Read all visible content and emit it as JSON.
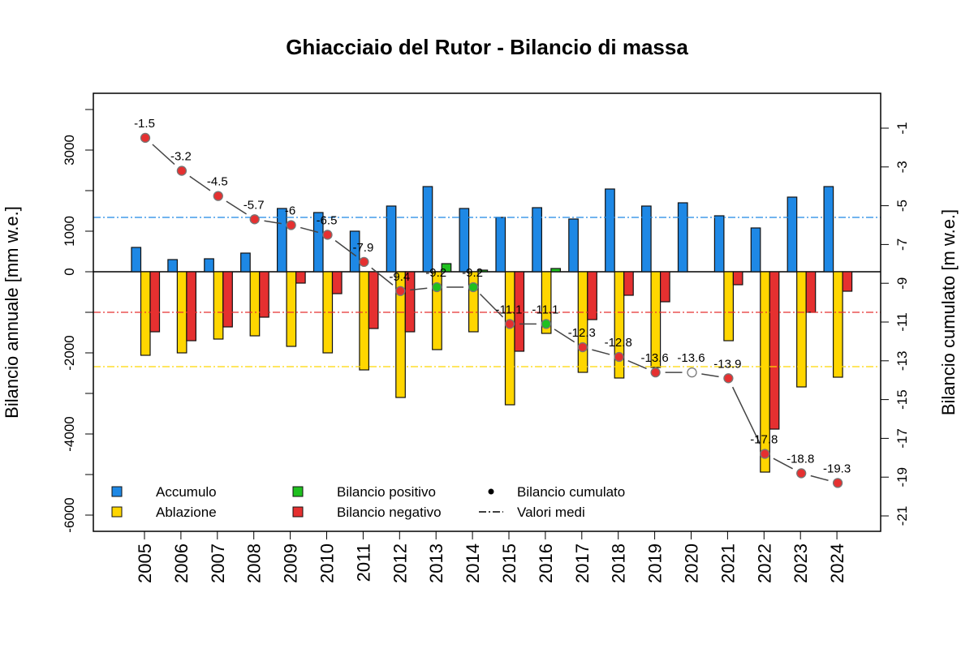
{
  "chart_data": {
    "type": "bar",
    "title": "Ghiacciaio del Rutor - Bilancio di massa",
    "ylabel": "Bilancio annuale [mm w.e.]",
    "y2label": "Bilancio cumulato [m w.e.]",
    "ylim": [
      -6400,
      4400
    ],
    "y2lim": [
      -21.9,
      0.0
    ],
    "yticks": [
      -6000,
      -5000,
      -4000,
      -3000,
      -2000,
      -1000,
      0,
      1000,
      2000,
      3000,
      4000
    ],
    "ytick_labels": {
      "-6000": "-6000",
      "-4000": "-4000",
      "-2000": "-2000",
      "0": "0",
      "1000": "1000",
      "3000": "3000"
    },
    "y2ticks": [
      -1,
      -3,
      -5,
      -7,
      -9,
      -11,
      -13,
      -15,
      -17,
      -19,
      -21
    ],
    "categories": [
      "2005",
      "2006",
      "2007",
      "2008",
      "2009",
      "2010",
      "2011",
      "2012",
      "2013",
      "2014",
      "2015",
      "2016",
      "2017",
      "2018",
      "2019",
      "2020",
      "2021",
      "2022",
      "2023",
      "2024"
    ],
    "series": [
      {
        "name": "Accumulo",
        "color": "#1e88e5",
        "values": [
          600,
          300,
          320,
          460,
          1560,
          1460,
          1000,
          1620,
          2100,
          1560,
          1340,
          1580,
          1300,
          2040,
          1620,
          1700,
          1380,
          1080,
          1840,
          2100
        ]
      },
      {
        "name": "Ablazione",
        "color": "#ffd600",
        "values": [
          -2060,
          -2000,
          -1660,
          -1580,
          -1840,
          -2000,
          -2420,
          -3100,
          -1920,
          -1480,
          -3280,
          -1520,
          -2480,
          -2620,
          -2360,
          null,
          -1700,
          -4940,
          -2840,
          -2600
        ]
      },
      {
        "name": "Bilancio",
        "color_positive": "#1fc01f",
        "color_negative": "#e53030",
        "values": [
          -1480,
          -1700,
          -1360,
          -1120,
          -280,
          -540,
          -1400,
          -1480,
          200,
          40,
          -1960,
          80,
          -1180,
          -580,
          -740,
          null,
          -320,
          -3880,
          -1000,
          -480
        ]
      }
    ],
    "cumulative": {
      "name": "Bilancio cumulato",
      "values": [
        -1.5,
        -3.2,
        -4.5,
        -5.7,
        -6,
        -6.5,
        -7.9,
        -9.4,
        -9.2,
        -9.2,
        -11.1,
        -11.1,
        -12.3,
        -12.8,
        -13.6,
        -13.6,
        -13.9,
        -17.8,
        -18.8,
        -19.3
      ],
      "labels": [
        "-1.5",
        "-3.2",
        "-4.5",
        "-5.7",
        "-6",
        "-6.5",
        "-7.9",
        "-9.4",
        "-9.2",
        "-9.2",
        "-11.1",
        "-11.1",
        "-12.3",
        "-12.8",
        "-13.6",
        "-13.6",
        "-13.9",
        "-17.8",
        "-18.8",
        "-19.3"
      ],
      "missing_year": "2020"
    },
    "means": [
      {
        "series": "Accumulo",
        "value": 1340,
        "color": "#1e88e5"
      },
      {
        "series": "Bilancio",
        "value": -1000,
        "color": "#e53030"
      },
      {
        "series": "Ablazione",
        "value": -2340,
        "color": "#ffd600"
      }
    ],
    "legend": {
      "position": "bottom-left",
      "items": [
        "Accumulo",
        "Ablazione",
        "Bilancio positivo",
        "Bilancio negativo",
        "Bilancio cumulato",
        "Valori medi"
      ]
    },
    "grid": false
  }
}
